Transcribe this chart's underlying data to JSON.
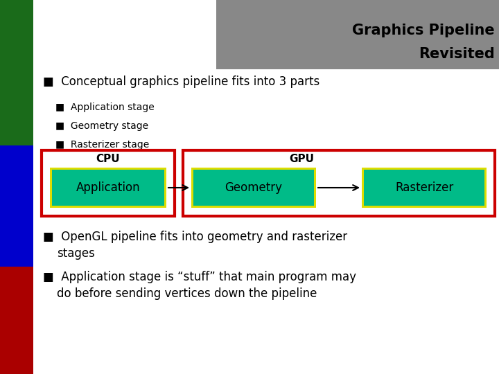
{
  "title_line1": "Graphics Pipeline",
  "title_line2": "Revisited",
  "title_bg_color": "#888888",
  "title_text_color": "#000000",
  "bg_color": "#ffffff",
  "left_bar_colors": [
    "#1a6b1a",
    "#0000cc",
    "#aa0000"
  ],
  "bullet1_text": "Conceptual graphics pipeline fits into 3 parts",
  "sub_bullets": [
    "Application stage",
    "Geometry stage",
    "Rasterizer stage"
  ],
  "cpu_label": "CPU",
  "gpu_label": "GPU",
  "box_labels": [
    "Application",
    "Geometry",
    "Rasterizer"
  ],
  "box_fill_color": "#00bb88",
  "box_border_color": "#dddd00",
  "outer_box_color": "#cc0000",
  "arrow_color": "#000000",
  "bottom_bullet1_line1": "OpenGL pipeline fits into geometry and rasterizer",
  "bottom_bullet1_line2": "stages",
  "bottom_bullet2_line1": "Application stage is “stuff” that main program may",
  "bottom_bullet2_line2": "do before sending vertices down the pipeline",
  "text_color": "#000000",
  "bullet_char": "■"
}
